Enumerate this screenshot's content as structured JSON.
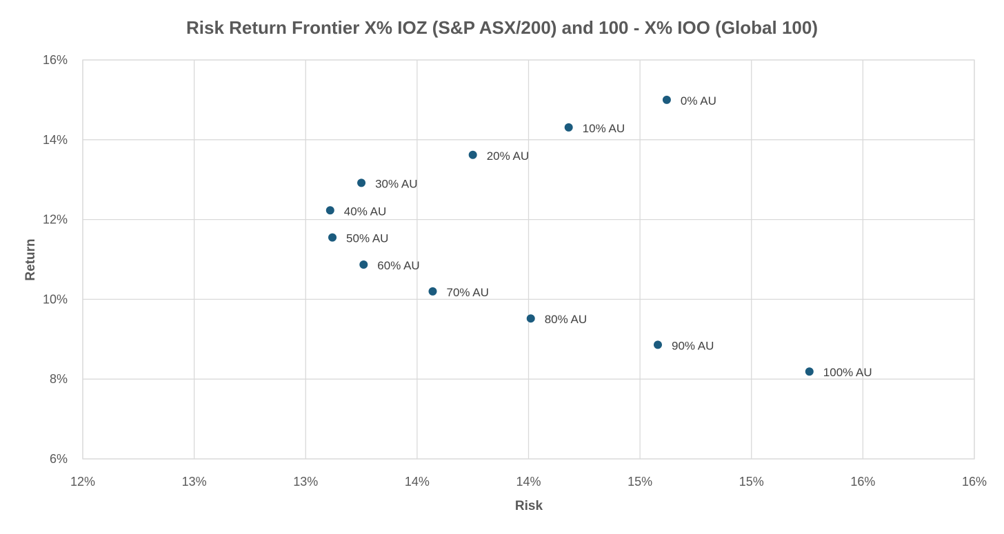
{
  "chart_data": {
    "type": "scatter",
    "title": "Risk Return Frontier X% IOZ (S&P ASX/200) and 100 - X% IOO (Global 100)",
    "xlabel": "Risk",
    "ylabel": "Return",
    "xlim": [
      0.12,
      0.16
    ],
    "ylim": [
      0.06,
      0.16
    ],
    "x_tick_values": [
      0.12,
      0.125,
      0.13,
      0.135,
      0.14,
      0.145,
      0.15,
      0.155,
      0.16
    ],
    "x_tick_labels": [
      "12%",
      "13%",
      "13%",
      "14%",
      "14%",
      "15%",
      "15%",
      "16%",
      "16%"
    ],
    "y_tick_values": [
      0.06,
      0.08,
      0.1,
      0.12,
      0.14,
      0.16
    ],
    "y_tick_labels": [
      "6%",
      "8%",
      "10%",
      "12%",
      "14%",
      "16%"
    ],
    "grid": true,
    "marker_color": "#1b5b7e",
    "points": [
      {
        "label": "0% AU",
        "x": 0.1462,
        "y": 0.15
      },
      {
        "label": "10% AU",
        "x": 0.1418,
        "y": 0.1431
      },
      {
        "label": "20% AU",
        "x": 0.1375,
        "y": 0.1362
      },
      {
        "label": "30% AU",
        "x": 0.1325,
        "y": 0.1292
      },
      {
        "label": "40% AU",
        "x": 0.1311,
        "y": 0.1223
      },
      {
        "label": "50% AU",
        "x": 0.1312,
        "y": 0.1155
      },
      {
        "label": "60% AU",
        "x": 0.1326,
        "y": 0.1087
      },
      {
        "label": "70% AU",
        "x": 0.1357,
        "y": 0.102
      },
      {
        "label": "80% AU",
        "x": 0.1401,
        "y": 0.0952
      },
      {
        "label": "90% AU",
        "x": 0.1458,
        "y": 0.0886
      },
      {
        "label": "100% AU",
        "x": 0.1526,
        "y": 0.0819
      }
    ]
  }
}
